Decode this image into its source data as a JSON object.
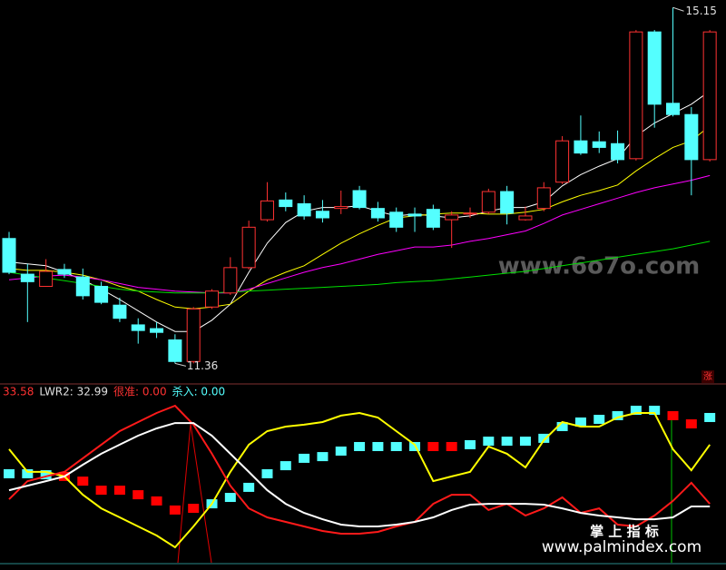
{
  "chart_data": [
    {
      "type": "candlestick",
      "up_color": "#ff3232",
      "down_color": "#54ffff",
      "ylim": [
        11.17,
        15.23
      ],
      "open": [
        12.69,
        12.31,
        12.18,
        12.36,
        12.28,
        12.18,
        11.98,
        11.77,
        11.73,
        11.61,
        11.38,
        11.96,
        12.11,
        12.38,
        12.89,
        13.1,
        13.06,
        12.98,
        13.01,
        13.2,
        13.01,
        12.97,
        12.95,
        13.0,
        12.89,
        12.95,
        12.97,
        13.19,
        12.89,
        13.01,
        13.29,
        13.73,
        13.72,
        13.7,
        13.54,
        14.89,
        14.13,
        14.01,
        13.53
      ],
      "close": [
        12.33,
        12.23,
        12.34,
        12.31,
        12.08,
        12.01,
        11.84,
        11.71,
        11.69,
        11.38,
        11.94,
        12.13,
        12.38,
        12.81,
        13.09,
        13.03,
        12.93,
        12.91,
        13.03,
        13.02,
        12.91,
        12.81,
        12.93,
        12.81,
        12.94,
        12.96,
        13.19,
        12.96,
        12.93,
        13.23,
        13.73,
        13.6,
        13.66,
        13.53,
        14.89,
        14.12,
        14.01,
        13.53,
        14.89
      ],
      "high": [
        12.76,
        12.42,
        12.47,
        12.42,
        12.37,
        12.23,
        12.06,
        11.84,
        11.8,
        11.67,
        11.96,
        12.15,
        12.49,
        12.88,
        13.29,
        13.18,
        13.15,
        13.1,
        13.2,
        13.25,
        13.08,
        13.02,
        13.02,
        13.05,
        12.98,
        13.02,
        13.22,
        13.25,
        13.03,
        13.29,
        13.78,
        14.0,
        13.83,
        13.84,
        14.91,
        14.91,
        15.15,
        14.09,
        14.91
      ],
      "low": [
        12.31,
        11.8,
        12.18,
        12.27,
        12.04,
        11.99,
        11.8,
        11.57,
        11.63,
        11.36,
        11.36,
        11.94,
        12.09,
        12.36,
        12.87,
        12.98,
        12.89,
        12.86,
        12.95,
        13.0,
        12.87,
        12.76,
        12.76,
        12.78,
        12.59,
        12.91,
        12.95,
        12.84,
        12.88,
        12.98,
        13.27,
        13.58,
        13.6,
        13.49,
        13.52,
        13.87,
        13.99,
        13.15,
        13.51
      ],
      "series": [
        {
          "color": "#ffffff",
          "values": [
            12.44,
            12.42,
            12.4,
            12.33,
            12.25,
            12.15,
            12.04,
            11.92,
            11.8,
            11.7,
            11.7,
            11.82,
            11.99,
            12.33,
            12.64,
            12.86,
            12.98,
            13.02,
            13.02,
            13.04,
            12.98,
            12.93,
            12.95,
            12.93,
            12.91,
            12.93,
            12.98,
            13.02,
            13.02,
            13.08,
            13.25,
            13.37,
            13.46,
            13.54,
            13.78,
            13.92,
            14.02,
            14.12,
            14.26
          ]
        },
        {
          "color": "#ffff00",
          "values": [
            12.37,
            12.35,
            12.35,
            12.33,
            12.3,
            12.25,
            12.18,
            12.13,
            12.04,
            11.96,
            11.94,
            11.96,
            11.99,
            12.13,
            12.25,
            12.33,
            12.4,
            12.52,
            12.64,
            12.74,
            12.83,
            12.91,
            12.93,
            12.95,
            12.96,
            12.96,
            12.95,
            12.95,
            12.97,
            13.0,
            13.08,
            13.15,
            13.2,
            13.26,
            13.41,
            13.54,
            13.66,
            13.73,
            13.89
          ]
        },
        {
          "color": "#ff00ff",
          "values": [
            12.25,
            12.27,
            12.29,
            12.3,
            12.28,
            12.25,
            12.21,
            12.17,
            12.15,
            12.13,
            12.12,
            12.11,
            12.11,
            12.15,
            12.21,
            12.27,
            12.33,
            12.38,
            12.42,
            12.47,
            12.52,
            12.56,
            12.6,
            12.6,
            12.62,
            12.66,
            12.69,
            12.73,
            12.77,
            12.85,
            12.94,
            13.0,
            13.06,
            13.12,
            13.18,
            13.23,
            13.27,
            13.31,
            13.36
          ]
        },
        {
          "color": "#00e000",
          "values": [
            12.33,
            12.3,
            12.27,
            12.24,
            12.21,
            12.18,
            12.15,
            12.13,
            12.12,
            12.11,
            12.11,
            12.11,
            12.12,
            12.13,
            12.14,
            12.15,
            12.16,
            12.17,
            12.18,
            12.19,
            12.2,
            12.22,
            12.23,
            12.24,
            12.26,
            12.28,
            12.3,
            12.32,
            12.34,
            12.37,
            12.4,
            12.43,
            12.46,
            12.49,
            12.52,
            12.55,
            12.58,
            12.62,
            12.66
          ]
        }
      ],
      "annotations": [
        "15.15",
        "11.36"
      ],
      "badge": "涨",
      "watermark": "www.6o7o.com"
    },
    {
      "type": "line",
      "ylim": [
        0,
        100
      ],
      "header": [
        {
          "text": "33.58",
          "color": "#ff3232"
        },
        {
          "text": "LWR2: 32.99",
          "color": "#e0e0e0"
        },
        {
          "text": "很准: 0.00",
          "color": "#ff3232"
        },
        {
          "text": "杀入: 0.00",
          "color": "#54ffff"
        }
      ],
      "series": [
        {
          "color": "#ffff00",
          "values": [
            67.6,
            54.1,
            54.1,
            51.4,
            40.5,
            32.4,
            27.0,
            21.6,
            16.2,
            9.2,
            21.6,
            35.1,
            54.1,
            70.3,
            78.4,
            81.1,
            82.2,
            83.8,
            87.6,
            89.2,
            86.5,
            78.4,
            70.3,
            48.6,
            51.4,
            54.1,
            69.2,
            64.9,
            56.8,
            73.0,
            83.8,
            81.1,
            81.1,
            86.5,
            89.2,
            89.2,
            67.6,
            55.1,
            70.3
          ]
        },
        {
          "color": "#ff1a1a",
          "values": [
            37.8,
            48.6,
            51.4,
            54.1,
            62.2,
            70.3,
            78.4,
            83.8,
            89.2,
            93.5,
            82.2,
            64.9,
            45.9,
            32.4,
            27.0,
            24.3,
            21.6,
            18.9,
            17.3,
            17.3,
            18.4,
            21.6,
            24.3,
            35.1,
            40.5,
            40.5,
            31.4,
            35.1,
            28.1,
            32.4,
            38.9,
            29.7,
            32.4,
            22.7,
            21.6,
            28.1,
            36.8,
            47.6,
            35.1
          ]
        },
        {
          "color": "#ffffff",
          "values": [
            43.2,
            45.9,
            48.6,
            51.4,
            58.4,
            64.9,
            70.3,
            75.7,
            80.0,
            83.2,
            83.2,
            75.7,
            64.9,
            54.1,
            43.2,
            35.1,
            29.7,
            25.9,
            22.7,
            21.6,
            21.6,
            22.7,
            24.3,
            27.0,
            31.4,
            34.6,
            35.1,
            35.1,
            35.1,
            34.6,
            32.4,
            29.7,
            28.1,
            27.0,
            25.9,
            25.9,
            27.0,
            33.5,
            33.5
          ]
        }
      ],
      "blocks": {
        "values": [
          53.0,
          53.0,
          52.4,
          51.4,
          48.6,
          43.2,
          43.2,
          40.5,
          36.8,
          31.4,
          32.4,
          35.1,
          38.9,
          44.9,
          53.0,
          57.8,
          62.2,
          63.2,
          66.5,
          69.2,
          69.2,
          69.2,
          69.2,
          69.2,
          69.2,
          70.3,
          72.4,
          72.4,
          72.4,
          74.1,
          81.1,
          83.8,
          85.4,
          87.6,
          90.8,
          90.8,
          87.6,
          82.7,
          86.5
        ],
        "colors": [
          "#54ffff",
          "#54ffff",
          "#54ffff",
          "#ff0000",
          "#ff0000",
          "#ff0000",
          "#ff0000",
          "#ff0000",
          "#ff0000",
          "#ff0000",
          "#ff0000",
          "#54ffff",
          "#54ffff",
          "#54ffff",
          "#54ffff",
          "#54ffff",
          "#54ffff",
          "#54ffff",
          "#54ffff",
          "#54ffff",
          "#54ffff",
          "#54ffff",
          "#54ffff",
          "#ff0000",
          "#ff0000",
          "#54ffff",
          "#54ffff",
          "#54ffff",
          "#54ffff",
          "#54ffff",
          "#54ffff",
          "#54ffff",
          "#54ffff",
          "#54ffff",
          "#54ffff",
          "#54ffff",
          "#ff0000",
          "#ff0000",
          "#54ffff"
        ]
      },
      "watermark_title": "掌 上 指 标",
      "watermark_url": "www.palmindex.com"
    }
  ]
}
